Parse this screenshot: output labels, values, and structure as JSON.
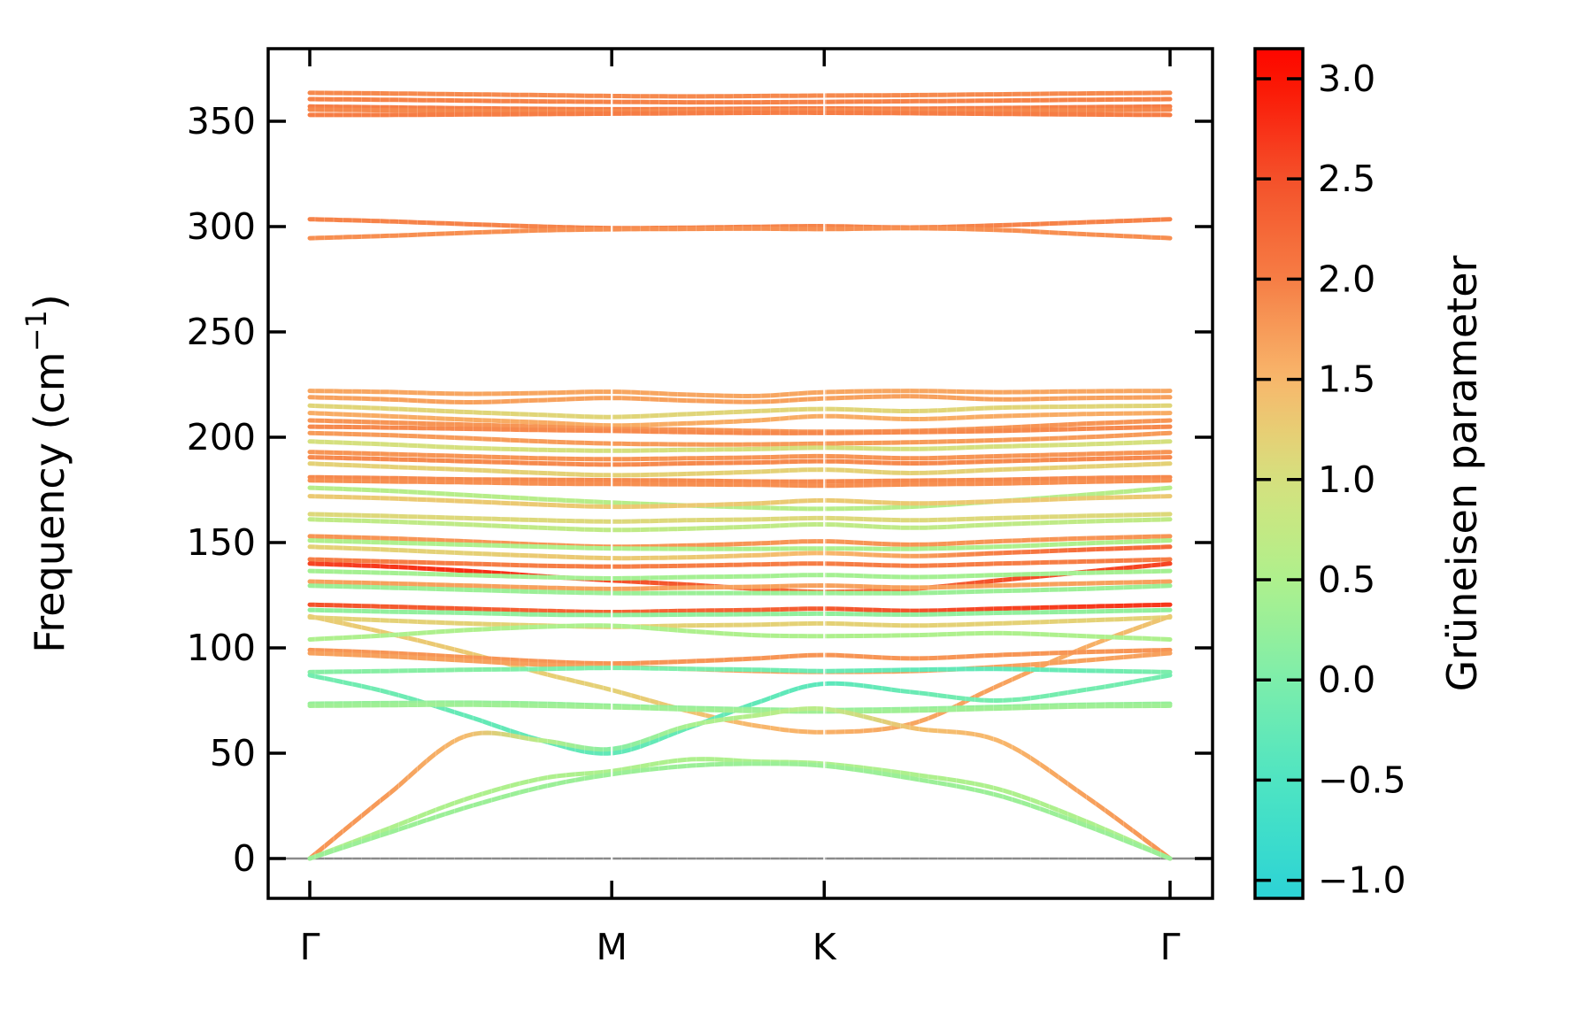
{
  "figure": {
    "background": "#ffffff",
    "axis_color": "#000000",
    "zero_line_color": "#8a8a8a"
  },
  "chart_data": {
    "type": "line",
    "variant": "phonon-band-structure-gruneisen",
    "title": "",
    "ylabel_prefix": "Frequency (cm",
    "ylabel_sup": "−1",
    "ylabel_suffix": ")",
    "colorbar_label": "Grüneisen parameter",
    "x_tick_labels": [
      "Γ",
      "M",
      "K",
      "Γ"
    ],
    "x_tick_positions": [
      0,
      0.351,
      0.598,
      1.0
    ],
    "y_ticks": [
      0,
      50,
      100,
      150,
      200,
      250,
      300,
      350
    ],
    "ylim": [
      -18.9,
      384.5
    ],
    "colorbar": {
      "vmin": -1.09,
      "vmax": 3.15,
      "tick_values": [
        3.0,
        2.5,
        2.0,
        1.5,
        1.0,
        0.5,
        0.0,
        -0.5,
        -1.0
      ],
      "tick_labels": [
        "3.0",
        "2.5",
        "2.0",
        "1.5",
        "1.0",
        "0.5",
        "0.0",
        "−0.5",
        "−1.0"
      ]
    },
    "colormap_stops": [
      [
        -1.1,
        "#2bd2d6"
      ],
      [
        -0.75,
        "#3fdeca"
      ],
      [
        -0.5,
        "#4fe4c2"
      ],
      [
        -0.25,
        "#65e9b6"
      ],
      [
        0.0,
        "#7deeab"
      ],
      [
        0.25,
        "#96ef9a"
      ],
      [
        0.5,
        "#aef08d"
      ],
      [
        0.75,
        "#c3e984"
      ],
      [
        1.0,
        "#d5e07e"
      ],
      [
        1.25,
        "#e8cd74"
      ],
      [
        1.5,
        "#f8b76c"
      ],
      [
        1.75,
        "#f79b59"
      ],
      [
        2.0,
        "#f67d45"
      ],
      [
        2.25,
        "#f56737"
      ],
      [
        2.5,
        "#f4512a"
      ],
      [
        2.75,
        "#f83117"
      ],
      [
        3.0,
        "#fb1402"
      ],
      [
        3.15,
        "#fe0600"
      ]
    ],
    "stations": [
      0,
      0.09,
      0.18,
      0.27,
      0.351,
      0.44,
      0.52,
      0.598,
      0.7,
      0.8,
      0.9,
      1.0
    ],
    "bands": [
      {
        "f": [
          363.5,
          363.2,
          362.8,
          362.4,
          362.0,
          361.8,
          362.0,
          362.2,
          362.4,
          362.8,
          363.2,
          363.5
        ],
        "g": 1.9
      },
      {
        "f": [
          360.5,
          360.2,
          359.8,
          359.4,
          359.2,
          359.0,
          359.0,
          359.2,
          359.5,
          359.8,
          360.2,
          360.5
        ],
        "g": 1.95
      },
      {
        "f": [
          357.0,
          356.6,
          356.2,
          355.9,
          355.7,
          355.8,
          356.0,
          356.1,
          356.0,
          356.3,
          356.7,
          357.0
        ],
        "g": 2.0
      },
      {
        "f": [
          355.5,
          355.2,
          354.9,
          354.7,
          354.8,
          355.0,
          355.2,
          355.3,
          355.1,
          355.0,
          355.2,
          355.5
        ],
        "g": 1.9
      },
      {
        "f": [
          353.0,
          353.0,
          353.2,
          353.4,
          353.6,
          353.8,
          354.0,
          354.0,
          353.8,
          353.5,
          353.2,
          353.0
        ],
        "g": 2.0
      },
      {
        "f": [
          303.5,
          302.5,
          301.2,
          300.0,
          299.3,
          299.5,
          299.9,
          300.2,
          299.6,
          300.6,
          302.0,
          303.5
        ],
        "g": 1.95
      },
      {
        "f": [
          294.5,
          295.6,
          297.0,
          298.2,
          298.7,
          298.9,
          299.0,
          298.8,
          299.2,
          298.4,
          296.4,
          294.5
        ],
        "g": 1.85
      },
      {
        "f": [
          222.0,
          221.5,
          220.6,
          221.0,
          221.6,
          220.2,
          219.6,
          221.4,
          222.0,
          221.4,
          221.8,
          222.0
        ],
        "g": 1.65
      },
      {
        "f": [
          219.0,
          218.0,
          216.6,
          217.6,
          218.6,
          217.4,
          216.8,
          218.4,
          219.4,
          218.0,
          218.6,
          219.0
        ],
        "g": 1.7
      },
      {
        "f": [
          215.0,
          213.6,
          212.0,
          210.6,
          209.6,
          211.0,
          212.4,
          213.4,
          212.4,
          214.0,
          214.6,
          215.0
        ],
        "g": 1.15
      },
      {
        "f": [
          211.5,
          210.0,
          208.4,
          207.0,
          205.6,
          206.6,
          208.0,
          210.0,
          208.6,
          210.0,
          211.0,
          211.5
        ],
        "g": 1.6
      },
      {
        "f": [
          208.0,
          207.0,
          206.0,
          205.0,
          204.0,
          203.6,
          203.0,
          202.6,
          203.0,
          204.4,
          206.4,
          208.0
        ],
        "g": 1.8
      },
      {
        "f": [
          205.0,
          204.6,
          204.0,
          203.4,
          203.0,
          202.4,
          202.0,
          202.0,
          202.4,
          203.0,
          204.0,
          205.0
        ],
        "g": 1.9
      },
      {
        "f": [
          202.0,
          201.0,
          199.6,
          198.0,
          197.0,
          196.6,
          196.6,
          197.0,
          197.6,
          198.6,
          200.0,
          202.0
        ],
        "g": 1.75
      },
      {
        "f": [
          198.0,
          196.6,
          195.0,
          194.0,
          193.6,
          194.0,
          194.4,
          195.0,
          194.4,
          195.6,
          196.6,
          198.0
        ],
        "g": 1.0
      },
      {
        "f": [
          193.0,
          192.0,
          191.0,
          190.0,
          189.6,
          190.0,
          190.4,
          191.0,
          190.0,
          191.0,
          192.0,
          193.0
        ],
        "g": 1.8
      },
      {
        "f": [
          190.5,
          189.6,
          188.6,
          187.6,
          187.0,
          187.6,
          188.0,
          188.6,
          187.6,
          188.6,
          189.6,
          190.5
        ],
        "g": 1.9
      },
      {
        "f": [
          187.5,
          186.0,
          184.6,
          183.0,
          182.0,
          182.6,
          183.6,
          184.6,
          183.0,
          184.6,
          186.0,
          187.5
        ],
        "g": 1.2
      },
      {
        "f": [
          181.0,
          180.6,
          180.0,
          179.8,
          179.6,
          179.4,
          179.0,
          179.0,
          179.4,
          179.8,
          180.6,
          181.0
        ],
        "g": 1.9
      },
      {
        "f": [
          179.5,
          179.0,
          178.6,
          178.0,
          177.8,
          177.6,
          177.4,
          177.0,
          177.6,
          178.0,
          178.8,
          179.5
        ],
        "g": 1.85
      },
      {
        "f": [
          176.0,
          174.6,
          172.6,
          170.6,
          169.0,
          167.6,
          166.6,
          166.0,
          167.0,
          169.6,
          172.6,
          176.0
        ],
        "g": 0.6
      },
      {
        "f": [
          172.0,
          171.0,
          169.6,
          168.0,
          167.0,
          167.6,
          168.6,
          170.0,
          168.6,
          169.6,
          171.0,
          172.0
        ],
        "g": 1.3
      },
      {
        "f": [
          163.5,
          162.6,
          161.6,
          160.6,
          160.0,
          160.6,
          161.0,
          161.6,
          160.6,
          161.6,
          162.6,
          163.5
        ],
        "g": 1.1
      },
      {
        "f": [
          161.0,
          160.0,
          158.6,
          157.0,
          156.0,
          156.6,
          157.6,
          158.6,
          157.0,
          158.6,
          160.0,
          161.0
        ],
        "g": 0.7
      },
      {
        "f": [
          153.0,
          152.0,
          150.6,
          149.0,
          148.0,
          148.6,
          149.6,
          150.6,
          149.0,
          150.6,
          152.0,
          153.0
        ],
        "g": 1.8
      },
      {
        "f": [
          151.0,
          150.0,
          149.0,
          148.0,
          147.2,
          147.0,
          147.0,
          147.2,
          147.0,
          148.0,
          149.6,
          151.0
        ],
        "g": 0.5
      },
      {
        "f": [
          148.0,
          146.6,
          145.0,
          143.6,
          142.6,
          143.0,
          144.0,
          145.0,
          143.6,
          145.0,
          146.6,
          148.0
        ],
        "g": [
          1.2,
          1.2,
          1.2,
          1.3,
          1.3,
          1.3,
          1.4,
          1.5,
          1.7,
          2.0,
          2.2,
          2.2
        ]
      },
      {
        "f": [
          142.0,
          141.0,
          140.0,
          139.0,
          138.6,
          139.0,
          139.6,
          140.0,
          139.0,
          140.0,
          141.0,
          142.0
        ],
        "g": 2.0
      },
      {
        "f": [
          140.0,
          138.6,
          136.6,
          134.0,
          132.0,
          130.0,
          128.0,
          126.6,
          128.0,
          132.0,
          136.0,
          140.0
        ],
        "g": [
          2.6,
          2.7,
          2.8,
          2.7,
          2.5,
          2.4,
          2.3,
          2.2,
          2.3,
          2.5,
          2.6,
          2.6
        ]
      },
      {
        "f": [
          136.5,
          135.6,
          134.6,
          133.6,
          133.0,
          133.6,
          134.0,
          134.6,
          133.6,
          134.6,
          135.6,
          136.5
        ],
        "g": 0.4
      },
      {
        "f": [
          131.5,
          130.6,
          129.6,
          128.6,
          128.0,
          128.6,
          129.0,
          129.6,
          128.6,
          129.6,
          130.6,
          131.5
        ],
        "g": 1.7
      },
      {
        "f": [
          129.5,
          128.6,
          127.6,
          126.6,
          126.0,
          126.0,
          126.0,
          126.0,
          126.0,
          127.0,
          128.0,
          129.5
        ],
        "g": 0.3
      },
      {
        "f": [
          120.5,
          119.6,
          118.6,
          117.6,
          117.0,
          117.6,
          118.0,
          118.6,
          117.6,
          118.6,
          119.6,
          120.5
        ],
        "g": [
          2.5,
          2.4,
          2.4,
          2.3,
          2.3,
          2.3,
          2.3,
          2.4,
          2.5,
          2.6,
          2.7,
          2.7
        ]
      },
      {
        "f": [
          118.0,
          117.2,
          116.6,
          115.8,
          115.6,
          115.8,
          116.0,
          116.2,
          115.8,
          116.6,
          117.2,
          118.0
        ],
        "g": 0.2
      },
      {
        "f": [
          114.5,
          113.0,
          111.6,
          110.6,
          110.0,
          110.6,
          111.0,
          111.6,
          110.6,
          111.6,
          113.0,
          114.5
        ],
        "g": 1.2
      },
      {
        "f": [
          115.0,
          107.0,
          98.0,
          88.0,
          80.0,
          70.0,
          63.0,
          60.0,
          64.0,
          82.0,
          100.0,
          115.0
        ],
        "g": [
          1.25,
          1.3,
          1.3,
          1.25,
          1.2,
          1.35,
          1.5,
          1.55,
          1.65,
          1.7,
          1.6,
          1.3
        ]
      },
      {
        "f": [
          104.0,
          106.0,
          108.4,
          110.0,
          110.5,
          108.0,
          106.0,
          105.6,
          106.0,
          107.0,
          105.6,
          104.0
        ],
        "g": 0.5
      },
      {
        "f": [
          99.0,
          97.6,
          95.6,
          93.6,
          92.6,
          93.6,
          95.0,
          96.6,
          95.0,
          96.6,
          98.0,
          99.0
        ],
        "g": 1.8
      },
      {
        "f": [
          97.5,
          96.0,
          94.0,
          92.0,
          91.0,
          90.0,
          89.0,
          88.6,
          89.0,
          91.0,
          94.0,
          97.5
        ],
        "g": 1.7
      },
      {
        "f": [
          88.5,
          89.0,
          89.6,
          90.0,
          90.5,
          90.0,
          89.6,
          89.0,
          89.6,
          90.0,
          89.2,
          88.5
        ],
        "g": [
          0.1,
          0.1,
          0.1,
          0.0,
          0.0,
          0.0,
          -0.1,
          -0.2,
          -0.3,
          -0.3,
          -0.2,
          0.0
        ]
      },
      {
        "f": [
          87.0,
          79.0,
          68.0,
          56.0,
          50.0,
          62.0,
          74.0,
          83.0,
          79.0,
          75.0,
          80.0,
          87.0
        ],
        "g": [
          -0.1,
          -0.15,
          -0.25,
          -0.3,
          -0.3,
          -0.25,
          -0.3,
          -0.35,
          -0.2,
          -0.05,
          -0.1,
          -0.1
        ]
      },
      {
        "f": [
          73.5,
          73.8,
          74.0,
          73.5,
          72.5,
          71.5,
          70.8,
          70.5,
          71.0,
          72.0,
          73.0,
          73.5
        ],
        "g": 0.25
      },
      {
        "f": [
          72.5,
          72.8,
          73.0,
          72.5,
          71.8,
          70.8,
          70.0,
          69.8,
          70.2,
          71.2,
          72.2,
          72.5
        ],
        "g": 0.35
      },
      {
        "f": [
          0.0,
          30.0,
          58.0,
          56.0,
          52.0,
          63.0,
          68.0,
          71.0,
          62.0,
          56.0,
          30.0,
          0.0
        ],
        "g": [
          1.8,
          1.75,
          1.45,
          0.6,
          0.1,
          0.45,
          0.6,
          0.65,
          1.4,
          1.5,
          1.7,
          1.8
        ]
      },
      {
        "f": [
          0.0,
          14.0,
          28.0,
          38.0,
          41.5,
          47.0,
          46.0,
          45.0,
          40.0,
          33.0,
          18.0,
          0.0
        ],
        "g": 0.5
      },
      {
        "f": [
          0.0,
          12.0,
          24.0,
          34.0,
          40.0,
          44.0,
          45.0,
          44.0,
          38.0,
          30.0,
          16.0,
          0.0
        ],
        "g": 0.3
      }
    ]
  }
}
